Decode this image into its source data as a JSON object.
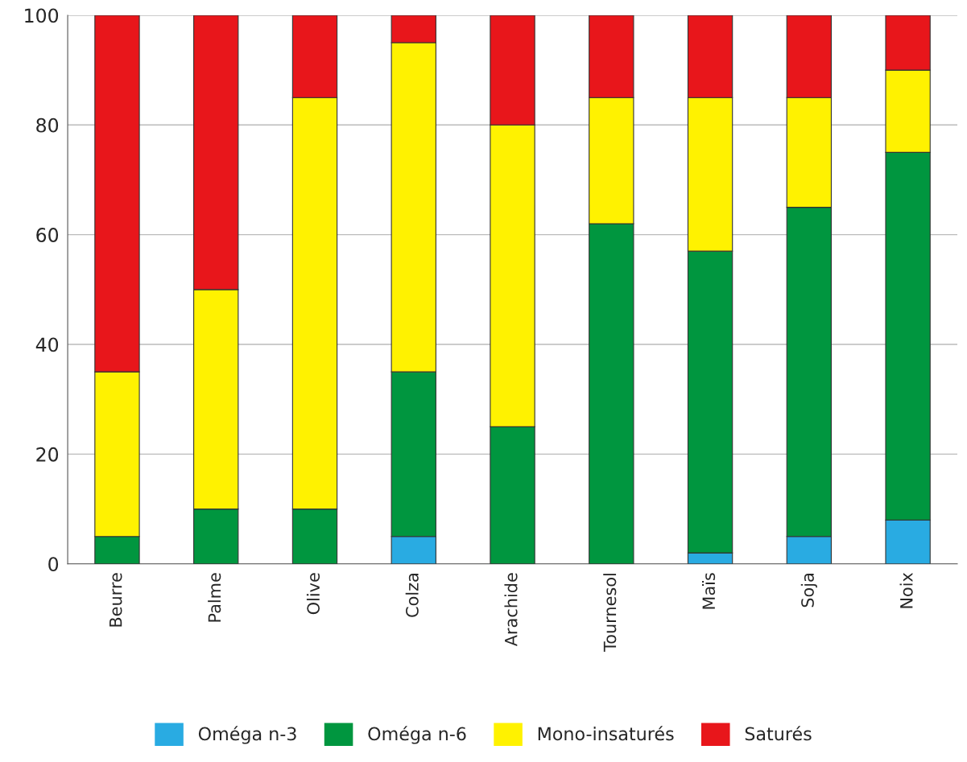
{
  "chart_data": {
    "type": "bar",
    "stacked": true,
    "categories": [
      "Beurre",
      "Palme",
      "Olive",
      "Colza",
      "Arachide",
      "Tournesol",
      "Maïs",
      "Soja",
      "Noix"
    ],
    "series": [
      {
        "name": "Oméga n-3",
        "color": "#29abe2",
        "values": [
          0,
          0,
          0,
          5,
          0,
          0,
          2,
          5,
          8
        ]
      },
      {
        "name": "Oméga n-6",
        "color": "#00963f",
        "values": [
          5,
          10,
          10,
          30,
          25,
          62,
          55,
          60,
          67
        ]
      },
      {
        "name": "Mono-insaturés",
        "color": "#fff200",
        "values": [
          30,
          40,
          75,
          60,
          55,
          23,
          28,
          20,
          15
        ]
      },
      {
        "name": "Saturés",
        "color": "#e8161b",
        "values": [
          65,
          50,
          15,
          5,
          20,
          15,
          15,
          15,
          10
        ]
      }
    ],
    "ylim": [
      0,
      100
    ],
    "yticks": [
      0,
      20,
      40,
      60,
      80,
      100
    ],
    "grid": "y",
    "legend": "bottom"
  }
}
